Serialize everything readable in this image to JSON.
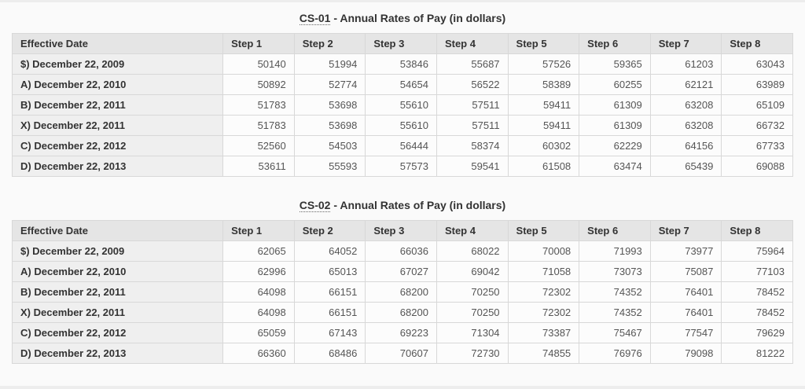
{
  "page": {
    "background_color": "#fafafa",
    "header_row_color": "#e5e5e5",
    "label_column_color": "#efefef",
    "cell_color": "#fcfcfc",
    "border_color": "#d8d8d8"
  },
  "tables": [
    {
      "title_abbr": "CS-01",
      "title_rest": " - Annual Rates of Pay (in dollars)",
      "columns": [
        "Effective Date",
        "Step 1",
        "Step 2",
        "Step 3",
        "Step 4",
        "Step 5",
        "Step 6",
        "Step 7",
        "Step 8"
      ],
      "rows": [
        {
          "label": "$) December 22, 2009",
          "values": [
            50140,
            51994,
            53846,
            55687,
            57526,
            59365,
            61203,
            63043
          ]
        },
        {
          "label": "A) December 22, 2010",
          "values": [
            50892,
            52774,
            54654,
            56522,
            58389,
            60255,
            62121,
            63989
          ]
        },
        {
          "label": "B) December 22, 2011",
          "values": [
            51783,
            53698,
            55610,
            57511,
            59411,
            61309,
            63208,
            65109
          ]
        },
        {
          "label": "X) December 22, 2011",
          "values": [
            51783,
            53698,
            55610,
            57511,
            59411,
            61309,
            63208,
            66732
          ]
        },
        {
          "label": "C) December 22, 2012",
          "values": [
            52560,
            54503,
            56444,
            58374,
            60302,
            62229,
            64156,
            67733
          ]
        },
        {
          "label": "D) December 22, 2013",
          "values": [
            53611,
            55593,
            57573,
            59541,
            61508,
            63474,
            65439,
            69088
          ]
        }
      ]
    },
    {
      "title_abbr": "CS-02",
      "title_rest": " - Annual Rates of Pay (in dollars)",
      "columns": [
        "Effective Date",
        "Step 1",
        "Step 2",
        "Step 3",
        "Step 4",
        "Step 5",
        "Step 6",
        "Step 7",
        "Step 8"
      ],
      "rows": [
        {
          "label": "$) December 22, 2009",
          "values": [
            62065,
            64052,
            66036,
            68022,
            70008,
            71993,
            73977,
            75964
          ]
        },
        {
          "label": "A) December 22, 2010",
          "values": [
            62996,
            65013,
            67027,
            69042,
            71058,
            73073,
            75087,
            77103
          ]
        },
        {
          "label": "B) December 22, 2011",
          "values": [
            64098,
            66151,
            68200,
            70250,
            72302,
            74352,
            76401,
            78452
          ]
        },
        {
          "label": "X) December 22, 2011",
          "values": [
            64098,
            66151,
            68200,
            70250,
            72302,
            74352,
            76401,
            78452
          ]
        },
        {
          "label": "C) December 22, 2012",
          "values": [
            65059,
            67143,
            69223,
            71304,
            73387,
            75467,
            77547,
            79629
          ]
        },
        {
          "label": "D) December 22, 2013",
          "values": [
            66360,
            68486,
            70607,
            72730,
            74855,
            76976,
            79098,
            81222
          ]
        }
      ]
    }
  ]
}
